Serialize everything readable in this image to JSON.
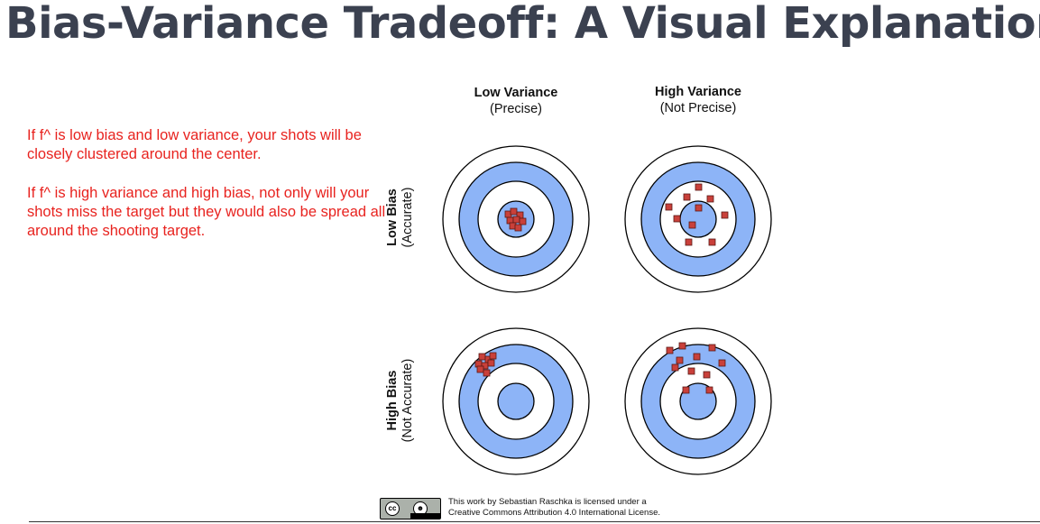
{
  "header": {
    "title": "Bias-Variance Tradeoff: A Visual Explanation"
  },
  "annotation": {
    "paragraph_1": "If f^ is low bias and low variance, your shots will be closely clustered around the center.",
    "paragraph_2": "If f^ is high variance and high bias, not only will your shots miss the target but they would also be spread all around the shooting target."
  },
  "figure": {
    "columns": [
      {
        "title": "Low Variance",
        "subtitle": "(Precise)"
      },
      {
        "title": "High Variance",
        "subtitle": "(Not Precise)"
      }
    ],
    "rows": [
      {
        "title": "Low Bias",
        "subtitle": "(Accurate)"
      },
      {
        "title": "High Bias",
        "subtitle": "(Not Accurate)"
      }
    ],
    "colors": {
      "ring_blue": "#8db4f7",
      "ring_outline": "#000000",
      "shot_fill": "#c9403a",
      "shot_outline": "#5a1a16",
      "annotation_text": "#e8231f",
      "title_text": "#3b4150"
    }
  },
  "license": {
    "badge_cc": "cc",
    "badge_by": "BY",
    "line_1": "This work by Sebastian Raschka is licensed under a",
    "line_2": "Creative Commons Attribution 4.0 International License."
  }
}
